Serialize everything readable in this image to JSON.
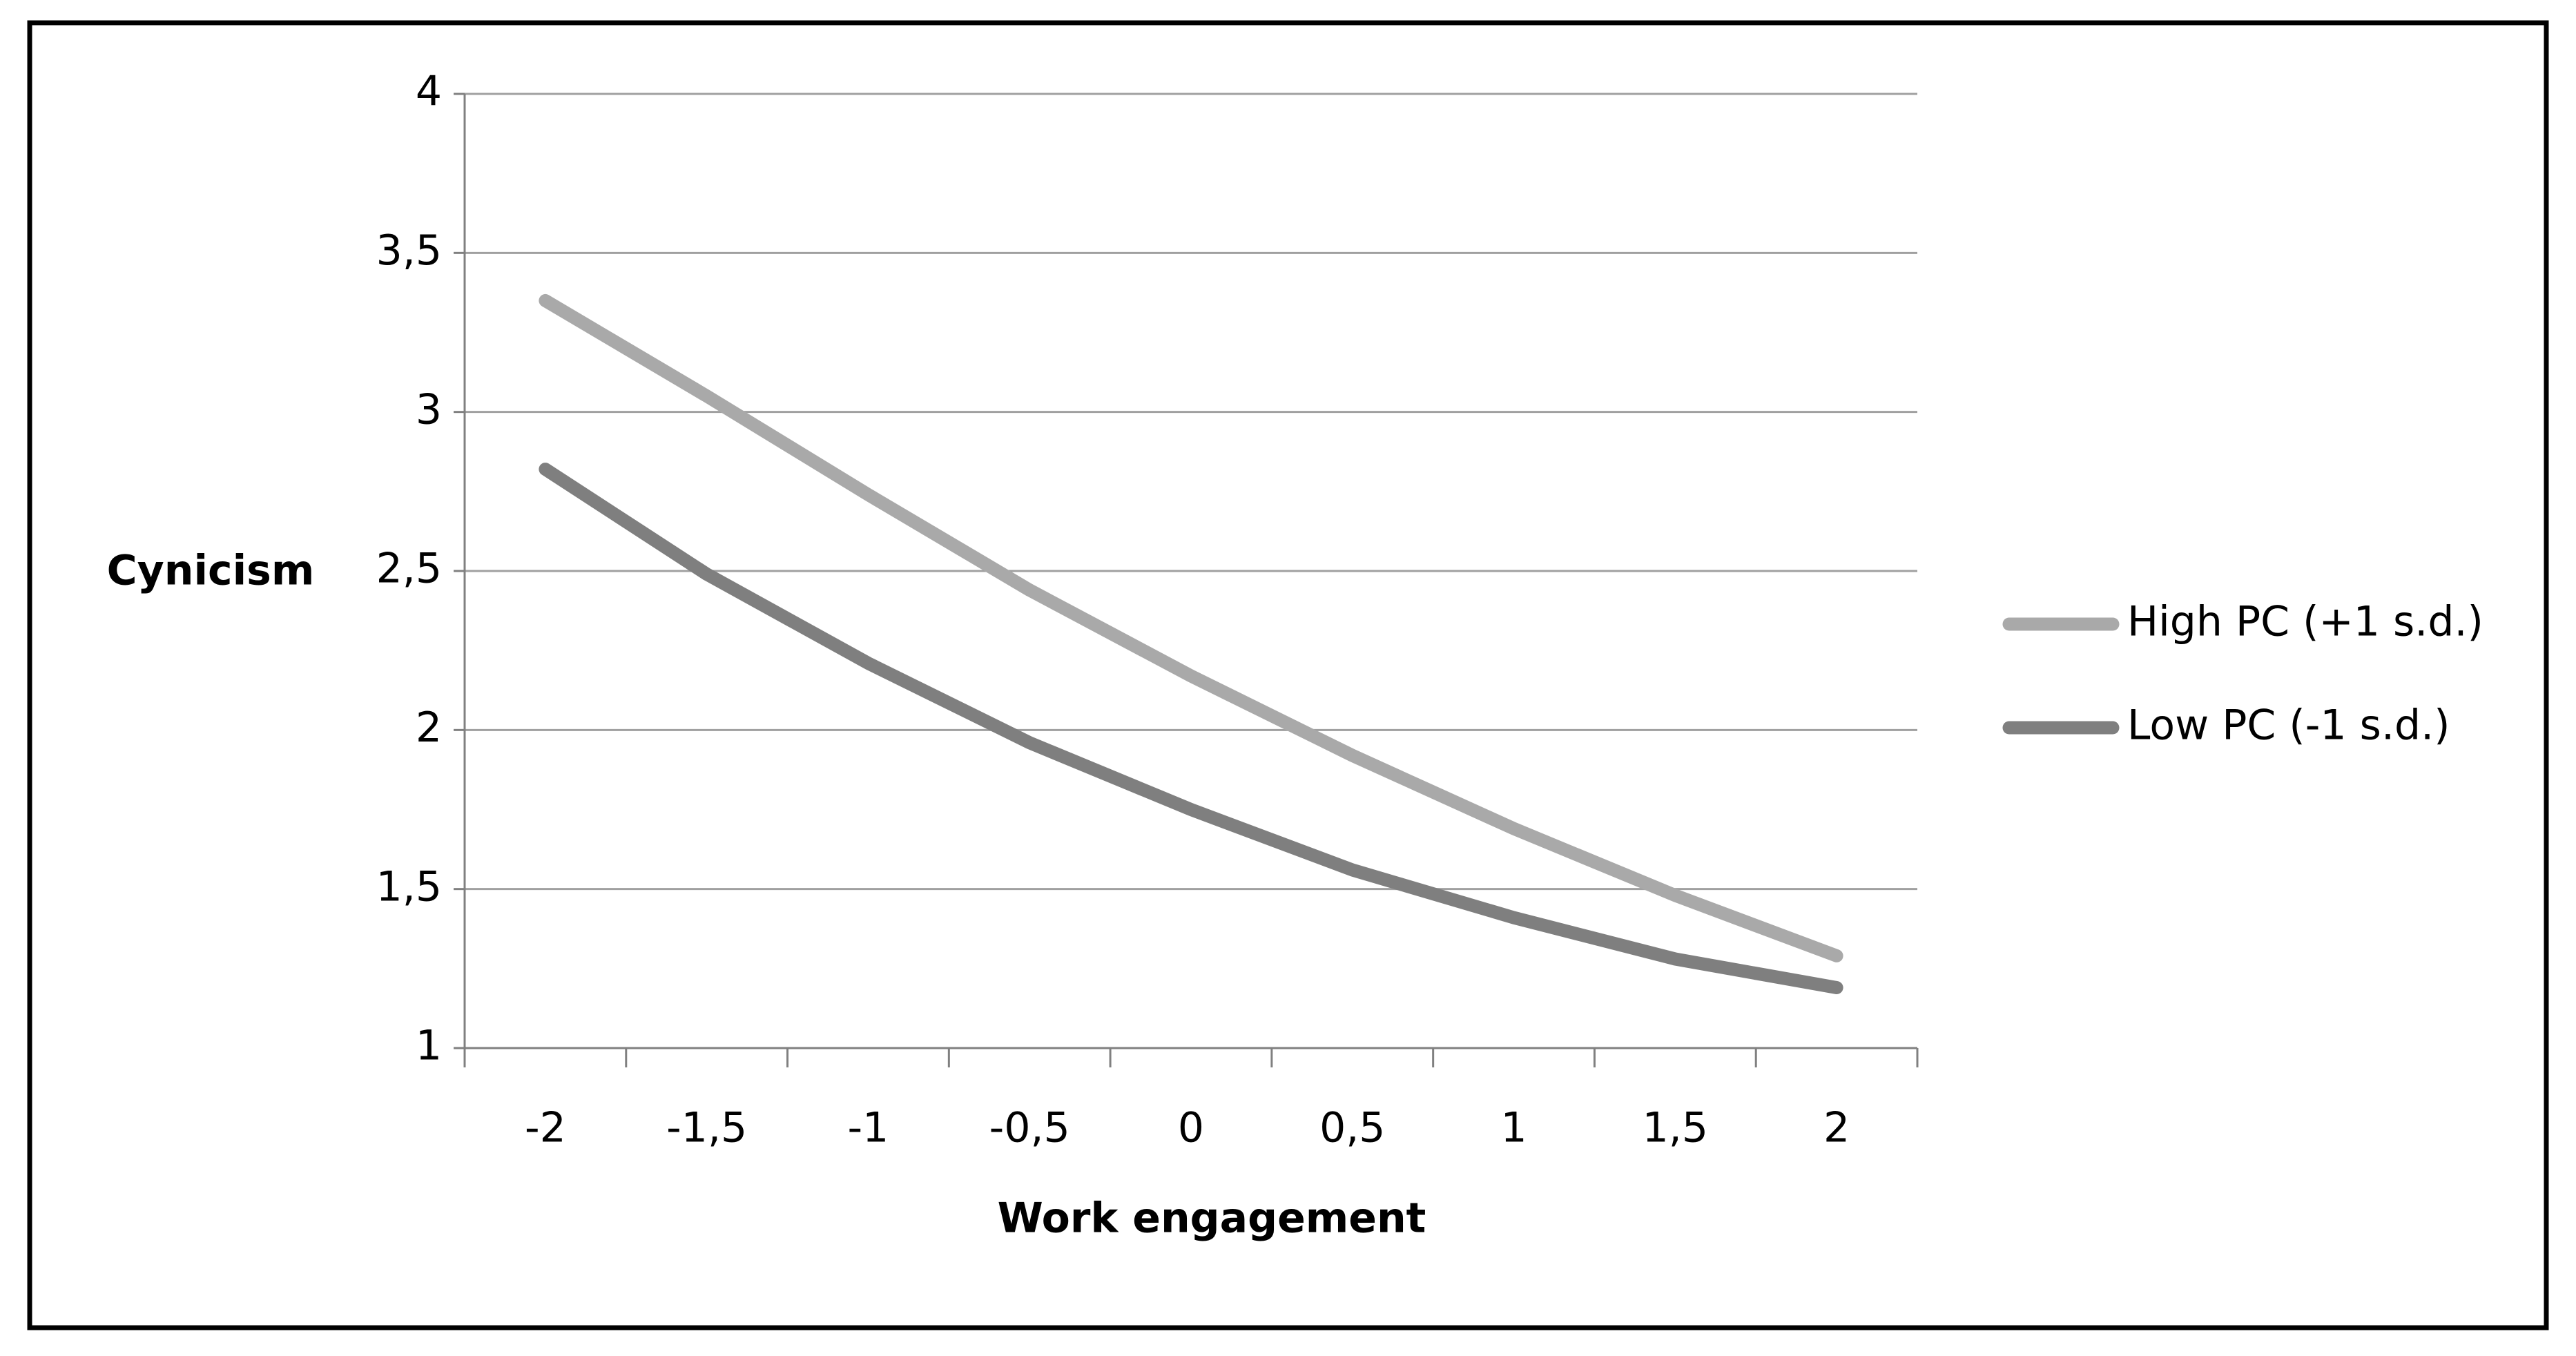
{
  "chart_data": {
    "type": "line",
    "x_label": "Work engagement",
    "y_label": "Cynicism",
    "categories": [
      "-2",
      "-1,5",
      "-1",
      "-0,5",
      "0",
      "0,5",
      "1",
      "1,5",
      "2"
    ],
    "series": [
      {
        "name": "High PC (+1 s.d.)",
        "color": "#a9a9a9",
        "values": [
          3.35,
          3.05,
          2.74,
          2.44,
          2.17,
          1.92,
          1.69,
          1.48,
          1.29
        ]
      },
      {
        "name": "Low PC (-1 s.d.)",
        "color": "#7f7f7f",
        "values": [
          2.82,
          2.49,
          2.21,
          1.96,
          1.75,
          1.56,
          1.41,
          1.28,
          1.19
        ]
      }
    ],
    "ylim": [
      1,
      4
    ],
    "yticks": [
      1,
      {
        "value": 1.5,
        "label": "1,5"
      },
      2,
      {
        "value": 2.5,
        "label": "2,5"
      },
      3,
      {
        "value": 3.5,
        "label": "3,5"
      },
      4
    ],
    "grid": true,
    "legend": "right"
  }
}
